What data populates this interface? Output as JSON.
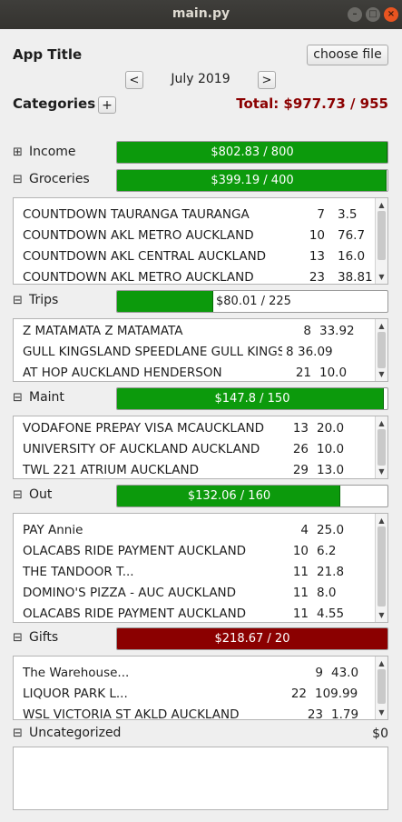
{
  "window": {
    "title": "main.py"
  },
  "header": {
    "app_title": "App Title",
    "choose_file": "choose file",
    "prev": "<",
    "next": ">",
    "month": "July 2019",
    "categories_label": "Categories",
    "add": "+",
    "total": "Total: $977.73 / 955"
  },
  "colors": {
    "bar_green": "#0c9a0c",
    "bar_red": "#8b0000",
    "total_red": "#8b0000"
  },
  "sections": {
    "income": {
      "toggle": "⊞",
      "label": "Income",
      "bar_text": "$802.83 / 800",
      "fill": 1.0
    },
    "groceries": {
      "toggle": "⊟",
      "label": "Groceries",
      "bar_text": "$399.19 / 400",
      "fill": 0.998,
      "rows": [
        {
          "desc": "COUNTDOWN TAURANGA TAURANGA",
          "day": "7",
          "amt": "3.5"
        },
        {
          "desc": "COUNTDOWN AKL METRO AUCKLAND",
          "day": "10",
          "amt": "76.7"
        },
        {
          "desc": "COUNTDOWN AKL CENTRAL AUCKLAND",
          "day": "13",
          "amt": "16.0"
        },
        {
          "desc": "COUNTDOWN AKL METRO AUCKLAND",
          "day": "23",
          "amt": "38.81"
        }
      ]
    },
    "trips": {
      "toggle": "⊟",
      "label": "Trips",
      "bar_text": "$80.01 / 225",
      "fill": 0.356,
      "rows": [
        {
          "desc": "Z MATAMATA Z MATAMATA",
          "day": "8",
          "amt": "33.92"
        },
        {
          "desc": "GULL KINGSLAND SPEEDLANE GULL KINGS",
          "day": "8",
          "amt": "36.09"
        },
        {
          "desc": "AT HOP AUCKLAND HENDERSON",
          "day": "21",
          "amt": "10.0"
        }
      ]
    },
    "maint": {
      "toggle": "⊟",
      "label": "Maint",
      "bar_text": "$147.8 / 150",
      "fill": 0.985,
      "rows": [
        {
          "desc": "VODAFONE PREPAY VISA MCAUCKLAND",
          "day": "13",
          "amt": "20.0"
        },
        {
          "desc": "UNIVERSITY OF AUCKLAND AUCKLAND",
          "day": "26",
          "amt": "10.0"
        },
        {
          "desc": "TWL 221 ATRIUM AUCKLAND",
          "day": "29",
          "amt": "13.0"
        }
      ]
    },
    "out": {
      "toggle": "⊟",
      "label": "Out",
      "bar_text": "$132.06 / 160",
      "fill": 0.825,
      "rows": [
        {
          "desc": "PAY Annie",
          "day": "4",
          "amt": "25.0"
        },
        {
          "desc": "OLACABS RIDE PAYMENT AUCKLAND",
          "day": "10",
          "amt": "6.2"
        },
        {
          "desc": "THE TANDOOR T...",
          "day": "11",
          "amt": "21.8"
        },
        {
          "desc": "DOMINO'S PIZZA - AUC AUCKLAND",
          "day": "11",
          "amt": "8.0"
        },
        {
          "desc": "OLACABS RIDE PAYMENT AUCKLAND",
          "day": "11",
          "amt": "4.55"
        }
      ]
    },
    "gifts": {
      "toggle": "⊟",
      "label": "Gifts",
      "bar_text": "$218.67 / 20",
      "fill": 1.0,
      "rows": [
        {
          "desc": "The Warehouse...",
          "day": "9",
          "amt": "43.0"
        },
        {
          "desc": "LIQUOR PARK L...",
          "day": "22",
          "amt": "109.99"
        },
        {
          "desc": "WSL VICTORIA ST AKLD AUCKLAND",
          "day": "23",
          "amt": "1.79"
        }
      ]
    },
    "uncategorized": {
      "toggle": "⊟",
      "label": "Uncategorized",
      "total": "$0"
    }
  }
}
